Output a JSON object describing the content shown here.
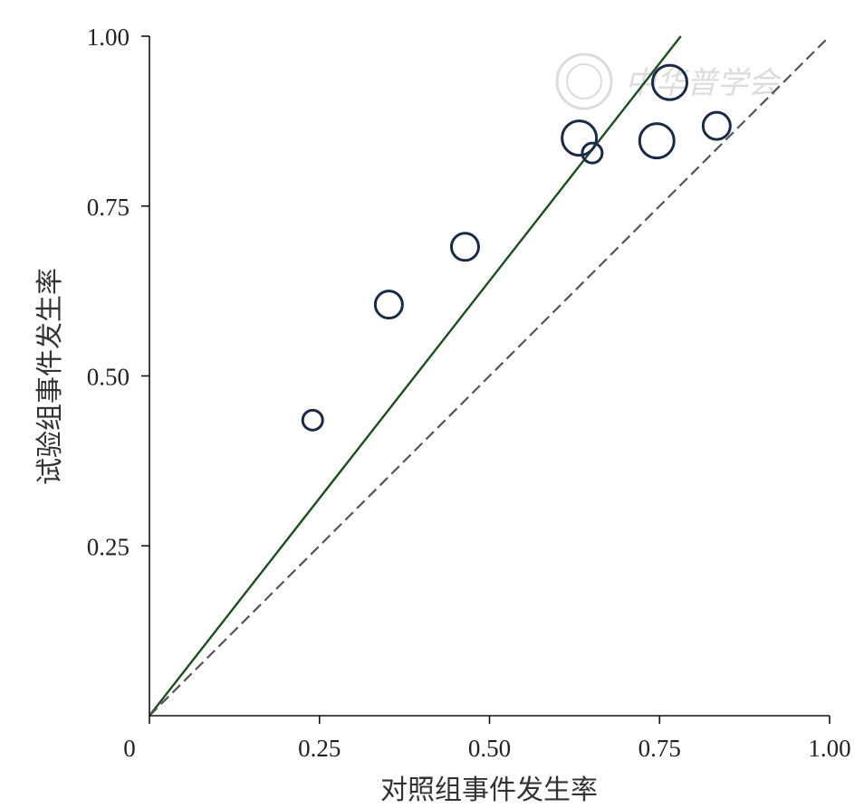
{
  "chart_data": {
    "type": "scatter",
    "title": "",
    "xlabel": "对照组事件发生率",
    "ylabel": "试验组事件发生率",
    "xlim": [
      0,
      1
    ],
    "ylim": [
      0,
      1
    ],
    "x_ticks": [
      {
        "value": 0,
        "label": "0"
      },
      {
        "value": 0.25,
        "label": "0.25"
      },
      {
        "value": 0.5,
        "label": "0.50"
      },
      {
        "value": 0.75,
        "label": "0.75"
      },
      {
        "value": 1,
        "label": "1.00"
      }
    ],
    "y_ticks": [
      {
        "value": 0.25,
        "label": "0.25"
      },
      {
        "value": 0.5,
        "label": "0.50"
      },
      {
        "value": 0.75,
        "label": "0.75"
      },
      {
        "value": 1,
        "label": "1.00"
      }
    ],
    "points": [
      {
        "x": 0.24,
        "y": 0.435,
        "size": 1
      },
      {
        "x": 0.352,
        "y": 0.605,
        "size": 2
      },
      {
        "x": 0.464,
        "y": 0.69,
        "size": 2
      },
      {
        "x": 0.632,
        "y": 0.85,
        "size": 3
      },
      {
        "x": 0.651,
        "y": 0.828,
        "size": 1
      },
      {
        "x": 0.746,
        "y": 0.846,
        "size": 3
      },
      {
        "x": 0.765,
        "y": 0.932,
        "size": 3
      },
      {
        "x": 0.834,
        "y": 0.868,
        "size": 2
      }
    ],
    "reference_lines": [
      {
        "type": "fitted",
        "slope": 1.28,
        "intercept": 0,
        "color": "#1f4d1f",
        "style": "solid"
      },
      {
        "type": "equality",
        "slope": 1,
        "intercept": 0,
        "color": "#555555",
        "style": "dashed"
      }
    ],
    "grid": false,
    "legend": "none"
  },
  "watermark": {
    "text": "中华普学会",
    "color": "#dcdcdc"
  }
}
